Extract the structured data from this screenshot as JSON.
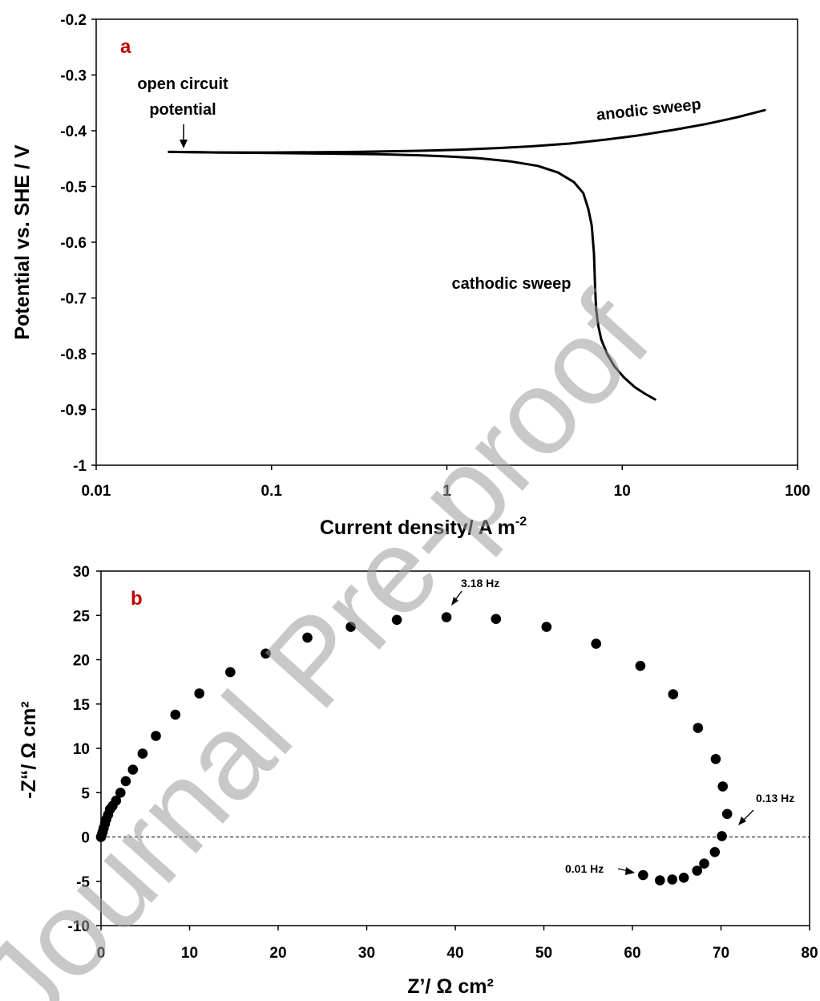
{
  "watermark": "Journal Pre-proof",
  "colors": {
    "panel_label": "#c00000",
    "data": "#000000",
    "watermark": "#9a9a9a"
  },
  "chart_data": [
    {
      "type": "line",
      "panel_label": "a",
      "xlabel": "Current density/ A m",
      "xlabel_superscript": "-2",
      "ylabel": "Potential vs. SHE / V",
      "xscale": "log",
      "xlim": [
        0.01,
        100
      ],
      "ylim": [
        -1,
        -0.2
      ],
      "xticks": [
        0.01,
        0.1,
        1,
        10,
        100
      ],
      "xtick_labels": [
        "0.01",
        "0.1",
        "1",
        "10",
        "100"
      ],
      "yticks": [
        -0.2,
        -0.3,
        -0.4,
        -0.5,
        -0.6,
        -0.7,
        -0.8,
        -0.9,
        -1
      ],
      "ytick_labels": [
        "-0.2",
        "-0.3",
        "-0.4",
        "-0.5",
        "-0.6",
        "-0.7",
        "-0.8",
        "-0.9",
        "-1"
      ],
      "grid": false,
      "series": [
        {
          "label": "anodic sweep",
          "x": [
            0.026,
            0.05,
            0.1,
            0.3,
            0.7,
            1.2,
            2,
            3,
            5,
            8,
            12,
            20,
            30,
            45,
            65
          ],
          "y": [
            -0.438,
            -0.439,
            -0.439,
            -0.438,
            -0.436,
            -0.434,
            -0.431,
            -0.428,
            -0.423,
            -0.416,
            -0.409,
            -0.398,
            -0.388,
            -0.376,
            -0.363
          ]
        },
        {
          "label": "cathodic sweep",
          "x": [
            0.026,
            0.05,
            0.1,
            0.2,
            0.4,
            0.7,
            1,
            1.5,
            2.3,
            3.3,
            4.3,
            5.3,
            6.0,
            6.4,
            6.7,
            6.9,
            7.0,
            7.1,
            7.3,
            7.6,
            8.2,
            9.0,
            10.2,
            11.8,
            13.5,
            15.4
          ],
          "y": [
            -0.438,
            -0.439,
            -0.44,
            -0.441,
            -0.442,
            -0.444,
            -0.446,
            -0.449,
            -0.455,
            -0.463,
            -0.475,
            -0.492,
            -0.512,
            -0.54,
            -0.57,
            -0.62,
            -0.68,
            -0.72,
            -0.75,
            -0.775,
            -0.8,
            -0.822,
            -0.842,
            -0.86,
            -0.872,
            -0.882
          ]
        }
      ],
      "annotations": [
        {
          "lines": [
            "open circuit",
            "potential"
          ],
          "arrow_to": [
            0.032,
            -0.435
          ]
        },
        {
          "text": "anodic sweep"
        },
        {
          "text": "cathodic sweep"
        }
      ]
    },
    {
      "type": "scatter",
      "panel_label": "b",
      "xlabel": "Z’/ Ω cm²",
      "ylabel": "-Z“/ Ω cm²",
      "xlim": [
        0,
        80
      ],
      "ylim": [
        -10,
        30
      ],
      "xticks": [
        0,
        10,
        20,
        30,
        40,
        50,
        60,
        70,
        80
      ],
      "xtick_labels": [
        "0",
        "10",
        "20",
        "30",
        "40",
        "50",
        "60",
        "70",
        "80"
      ],
      "yticks": [
        -10,
        -5,
        0,
        5,
        10,
        15,
        20,
        25,
        30
      ],
      "ytick_labels": [
        "-10",
        "-5",
        "0",
        "5",
        "10",
        "15",
        "20",
        "25",
        "30"
      ],
      "grid": false,
      "reference_line_y": 0,
      "points": [
        [
          0.0,
          0.0
        ],
        [
          0.1,
          0.3
        ],
        [
          0.2,
          0.6
        ],
        [
          0.3,
          1.0
        ],
        [
          0.45,
          1.5
        ],
        [
          0.6,
          2.0
        ],
        [
          0.8,
          2.5
        ],
        [
          1.0,
          3.1
        ],
        [
          1.3,
          3.5
        ],
        [
          1.7,
          4.1
        ],
        [
          2.2,
          5.0
        ],
        [
          2.8,
          6.3
        ],
        [
          3.6,
          7.6
        ],
        [
          4.7,
          9.4
        ],
        [
          6.2,
          11.4
        ],
        [
          8.4,
          13.8
        ],
        [
          11.1,
          16.2
        ],
        [
          14.6,
          18.6
        ],
        [
          18.6,
          20.7
        ],
        [
          23.3,
          22.5
        ],
        [
          28.2,
          23.7
        ],
        [
          33.4,
          24.5
        ],
        [
          39.0,
          24.8
        ],
        [
          44.6,
          24.6
        ],
        [
          50.3,
          23.7
        ],
        [
          55.9,
          21.8
        ],
        [
          60.9,
          19.3
        ],
        [
          64.6,
          16.1
        ],
        [
          67.4,
          12.3
        ],
        [
          69.4,
          8.8
        ],
        [
          70.2,
          5.7
        ],
        [
          70.7,
          2.6
        ],
        [
          70.1,
          0.1
        ],
        [
          69.3,
          -1.7
        ],
        [
          68.1,
          -3.0
        ],
        [
          67.3,
          -3.8
        ],
        [
          65.8,
          -4.6
        ],
        [
          64.5,
          -4.8
        ],
        [
          63.1,
          -4.9
        ],
        [
          61.2,
          -4.3
        ]
      ],
      "annotations": [
        {
          "text": "3.18 Hz",
          "arrow_to": [
            39.3,
            25.8
          ]
        },
        {
          "text": "0.13 Hz",
          "arrow_to": [
            71.5,
            1.4
          ]
        },
        {
          "text": "0.01 Hz",
          "arrow_to": [
            60.4,
            -4.0
          ]
        }
      ]
    }
  ]
}
